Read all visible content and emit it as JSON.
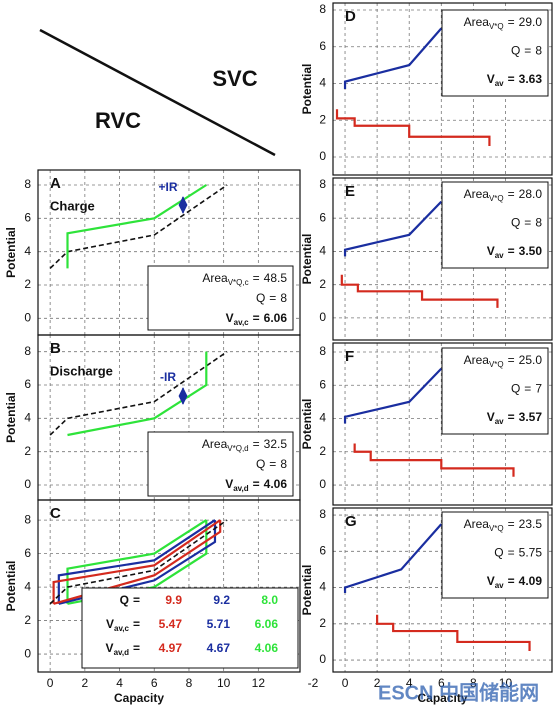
{
  "header": {
    "left": "RVC",
    "right": "SVC"
  },
  "watermark": "ESCN 中国储能网",
  "chart_data": [
    {
      "type": "line",
      "panel_label": "A",
      "caption": "Charge",
      "ir_label": "+IR",
      "ylabel": "Potential",
      "xlim": [
        -0.7,
        14.4
      ],
      "ylim": [
        -1,
        8.9
      ],
      "xticks": [
        0,
        2,
        4,
        6,
        8,
        10,
        12
      ],
      "yticks": [
        0,
        2,
        4,
        6,
        8
      ],
      "show_xtick_labels": false,
      "grid": true,
      "series": [
        {
          "color": "#111111",
          "dash": true,
          "x": [
            0,
            1,
            6,
            10.2
          ],
          "values": [
            3,
            4,
            5,
            8
          ]
        },
        {
          "color": "#2ee33a",
          "x": [
            1,
            1,
            6,
            9
          ],
          "values": [
            3,
            5.1,
            6,
            8
          ]
        }
      ],
      "info": [
        {
          "label": "Area",
          "sub": "V*Q,c",
          "sep": "=",
          "value": 48.5
        },
        {
          "label": "Q",
          "sep": "=",
          "value": 8
        },
        {
          "label": "V",
          "sub": "av,c",
          "sep": "=",
          "value": 6.06,
          "bold": true
        }
      ]
    },
    {
      "type": "line",
      "panel_label": "B",
      "caption": "Discharge",
      "ir_label": "-IR",
      "ylabel": "Potential",
      "xlim": [
        -0.7,
        14.4
      ],
      "ylim": [
        -0.9,
        9
      ],
      "xticks": [
        0,
        2,
        4,
        6,
        8,
        10,
        12
      ],
      "yticks": [
        0,
        2,
        4,
        6,
        8
      ],
      "show_xtick_labels": false,
      "grid": true,
      "series": [
        {
          "color": "#111111",
          "dash": true,
          "x": [
            0,
            1,
            6,
            10.2
          ],
          "values": [
            3,
            4,
            5,
            8
          ]
        },
        {
          "color": "#2ee33a",
          "x": [
            1,
            6,
            9,
            9
          ],
          "values": [
            3,
            4,
            6,
            8
          ]
        }
      ],
      "info": [
        {
          "label": "Area",
          "sub": "V*Q,d",
          "sep": "=",
          "value": 32.5
        },
        {
          "label": "Q",
          "sep": "=",
          "value": 8
        },
        {
          "label": "V",
          "sub": "av,d",
          "sep": "=",
          "value": 4.06,
          "bold": true
        }
      ]
    },
    {
      "type": "line",
      "panel_label": "C",
      "ylabel": "Potential",
      "xlabel": "Capacity",
      "xlim": [
        -0.7,
        14.4
      ],
      "ylim": [
        -1.07,
        9.2
      ],
      "xticks": [
        0,
        2,
        4,
        6,
        8,
        10,
        12
      ],
      "yticks": [
        0,
        2,
        4,
        6,
        8
      ],
      "show_xtick_labels": true,
      "grid": true,
      "series": [
        {
          "color": "#2ee33a",
          "x": [
            1,
            1,
            6,
            9
          ],
          "values": [
            3,
            5.1,
            6,
            8
          ]
        },
        {
          "color": "#2ee33a",
          "x": [
            1,
            6,
            9,
            9
          ],
          "values": [
            3,
            4,
            6,
            8
          ]
        },
        {
          "color": "#1a2ea0",
          "x": [
            0.5,
            0.5,
            6,
            9.5
          ],
          "values": [
            3,
            4.7,
            5.6,
            8
          ]
        },
        {
          "color": "#1a2ea0",
          "x": [
            0.5,
            6,
            9.5,
            9.5
          ],
          "values": [
            3,
            4.4,
            6.7,
            8
          ]
        },
        {
          "color": "#d42a1e",
          "x": [
            0.2,
            0.2,
            6,
            9.8
          ],
          "values": [
            3,
            4.3,
            5.3,
            8
          ]
        },
        {
          "color": "#d42a1e",
          "x": [
            0.2,
            6,
            9.8,
            9.8
          ],
          "values": [
            3,
            4.7,
            7.3,
            8
          ]
        },
        {
          "color": "#111111",
          "dash": true,
          "x": [
            0,
            1,
            6,
            10.2
          ],
          "values": [
            3,
            4,
            5,
            8
          ]
        }
      ],
      "table": {
        "colors": [
          "#d42a1e",
          "#1a2ea0",
          "#2ee33a"
        ],
        "rows": [
          {
            "label": "Q",
            "sep": "=",
            "values": [
              9.9,
              9.2,
              8.0
            ],
            "value_labels": [
              "9.9",
              "9.2",
              "8.0"
            ]
          },
          {
            "label": "V",
            "sub": "av,c",
            "sep": "=",
            "values": [
              5.47,
              5.71,
              6.06
            ]
          },
          {
            "label": "V",
            "sub": "av,d",
            "sep": "=",
            "values": [
              4.97,
              4.67,
              4.06
            ]
          }
        ]
      }
    },
    {
      "type": "line",
      "panel_label": "D",
      "ylabel": "Potential",
      "xlim": [
        -0.75,
        12.9
      ],
      "ylim": [
        -0.98,
        8.38
      ],
      "xticks": [
        -2,
        0,
        2,
        4,
        6,
        8,
        10
      ],
      "yticks": [
        0,
        2,
        4,
        6,
        8
      ],
      "show_xtick_labels": false,
      "grid": true,
      "series": [
        {
          "color": "#1a2ea0",
          "x": [
            0,
            0,
            4,
            6
          ],
          "values": [
            3.7,
            4.1,
            5,
            7
          ]
        },
        {
          "color": "#d42a1e",
          "x": [
            -0.5,
            -0.5,
            0.6,
            0.6,
            4,
            4,
            9,
            9
          ],
          "values": [
            2.6,
            2.1,
            2.1,
            1.7,
            1.7,
            1.1,
            1.1,
            0.6
          ]
        }
      ],
      "info": [
        {
          "label": "Area",
          "sub": "V*Q",
          "sep": "=",
          "value": 29.0,
          "value_label": "29.0"
        },
        {
          "label": "Q",
          "sep": "=",
          "value": 8
        },
        {
          "label": "V",
          "sub": "av",
          "sep": "=",
          "value": 3.63,
          "bold": true
        }
      ]
    },
    {
      "type": "line",
      "panel_label": "E",
      "ylabel": "Potential",
      "xlim": [
        -0.75,
        12.9
      ],
      "ylim": [
        -1.33,
        8.42
      ],
      "xticks": [
        -2,
        0,
        2,
        4,
        6,
        8,
        10
      ],
      "yticks": [
        0,
        2,
        4,
        6,
        8
      ],
      "show_xtick_labels": false,
      "grid": true,
      "series": [
        {
          "color": "#1a2ea0",
          "x": [
            0,
            0,
            4,
            6
          ],
          "values": [
            3.7,
            4.1,
            5,
            7
          ]
        },
        {
          "color": "#d42a1e",
          "x": [
            -0.2,
            -0.2,
            0.8,
            0.8,
            4.8,
            4.8,
            9.5,
            9.5
          ],
          "values": [
            2.6,
            2.0,
            2.0,
            1.6,
            1.6,
            1.1,
            1.1,
            0.6
          ]
        }
      ],
      "info": [
        {
          "label": "Area",
          "sub": "V*Q",
          "sep": "=",
          "value": 28.0,
          "value_label": "28.0"
        },
        {
          "label": "Q",
          "sep": "=",
          "value": 8
        },
        {
          "label": "V",
          "sub": "av",
          "sep": "=",
          "value": 3.5,
          "value_label": "3.50",
          "bold": true
        }
      ]
    },
    {
      "type": "line",
      "panel_label": "F",
      "ylabel": "Potential",
      "xlim": [
        -0.75,
        12.9
      ],
      "ylim": [
        -1.2,
        8.54
      ],
      "xticks": [
        -2,
        0,
        2,
        4,
        6,
        8,
        10
      ],
      "yticks": [
        0,
        2,
        4,
        6,
        8
      ],
      "show_xtick_labels": false,
      "grid": true,
      "series": [
        {
          "color": "#1a2ea0",
          "x": [
            0,
            0,
            4,
            6
          ],
          "values": [
            3.7,
            4.1,
            5,
            7
          ]
        },
        {
          "color": "#d42a1e",
          "x": [
            0.6,
            0.6,
            1.6,
            1.6,
            6,
            6,
            10.5,
            10.5
          ],
          "values": [
            2.5,
            2.0,
            2.0,
            1.5,
            1.5,
            1.0,
            1.0,
            0.5
          ]
        }
      ],
      "info": [
        {
          "label": "Area",
          "sub": "V*Q",
          "sep": "=",
          "value": 25.0,
          "value_label": "25.0"
        },
        {
          "label": "Q",
          "sep": "=",
          "value": 7
        },
        {
          "label": "V",
          "sub": "av",
          "sep": "=",
          "value": 3.57,
          "bold": true
        }
      ]
    },
    {
      "type": "line",
      "panel_label": "G",
      "ylabel": "Potential",
      "xlabel": "Capacity",
      "xlim": [
        -0.75,
        12.9
      ],
      "ylim": [
        -0.66,
        8.39
      ],
      "xticks": [
        -2,
        0,
        2,
        4,
        6,
        8,
        10
      ],
      "yticks": [
        0,
        2,
        4,
        6,
        8
      ],
      "show_xtick_labels": true,
      "grid": true,
      "series": [
        {
          "color": "#1a2ea0",
          "x": [
            0,
            0,
            3.5,
            6
          ],
          "values": [
            3.7,
            4.0,
            5,
            7.5
          ]
        },
        {
          "color": "#d42a1e",
          "x": [
            2,
            2,
            3,
            3,
            7,
            7,
            11.5,
            11.5
          ],
          "values": [
            2.5,
            2.0,
            2.0,
            1.6,
            1.6,
            1.0,
            1.0,
            0.5
          ]
        }
      ],
      "info": [
        {
          "label": "Area",
          "sub": "V*Q",
          "sep": "=",
          "value": 23.5
        },
        {
          "label": "Q",
          "sep": "=",
          "value": 5.75
        },
        {
          "label": "V",
          "sub": "av",
          "sep": "=",
          "value": 4.09,
          "bold": true
        }
      ]
    }
  ]
}
